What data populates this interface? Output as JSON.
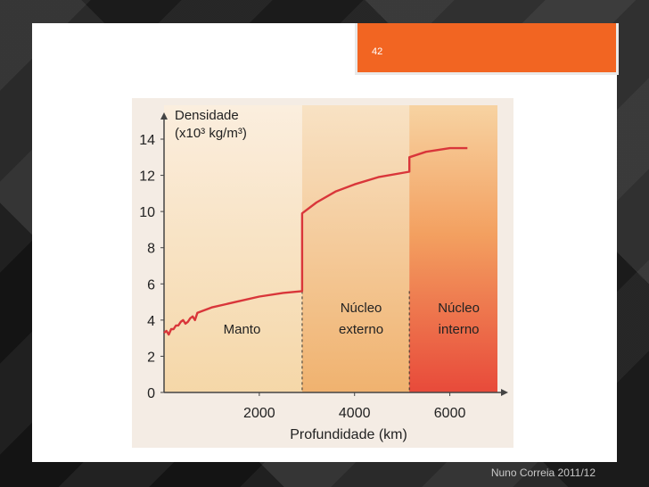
{
  "slide": {
    "number": "42",
    "footer": "Nuno Correia 2011/12"
  },
  "colors": {
    "tab": "#f26522",
    "curve": "#d9363a",
    "manto": "#f6dcb2",
    "externo": "#f2b77a",
    "interno_top": "#f6c07a",
    "interno_bottom": "#ea4f3c"
  },
  "chart_data": {
    "type": "line",
    "ylabel_line1": "Densidade",
    "ylabel_line2": "(x10³  kg/m³)",
    "xlabel": "Profundidade (km)",
    "xlim": [
      0,
      7000
    ],
    "ylim": [
      0,
      14
    ],
    "xticks": [
      2000,
      4000,
      6000
    ],
    "yticks": [
      0,
      2,
      4,
      6,
      8,
      10,
      12,
      14
    ],
    "regions": [
      {
        "label_line1": "",
        "label_line2": "Manto",
        "x0": 0,
        "x1": 2900
      },
      {
        "label_line1": "Núcleo",
        "label_line2": "externo",
        "x0": 2900,
        "x1": 5150
      },
      {
        "label_line1": "Núcleo",
        "label_line2": "interno",
        "x0": 5150,
        "x1": 7000
      }
    ],
    "boundaries": [
      2900,
      5150
    ],
    "series": [
      {
        "x": [
          0,
          50,
          100,
          150,
          200,
          250,
          300,
          350,
          400,
          450,
          500,
          550,
          600,
          650,
          700,
          800,
          1000,
          1500,
          2000,
          2500,
          2900,
          2900,
          3200,
          3600,
          4000,
          4500,
          5150,
          5150,
          5500,
          6000,
          6370
        ],
        "y": [
          3.3,
          3.4,
          3.2,
          3.5,
          3.5,
          3.7,
          3.7,
          3.9,
          4.0,
          3.8,
          3.9,
          4.1,
          4.2,
          4.0,
          4.4,
          4.5,
          4.7,
          5.0,
          5.3,
          5.5,
          5.6,
          9.9,
          10.5,
          11.1,
          11.5,
          11.9,
          12.2,
          13.0,
          13.3,
          13.5,
          13.5
        ]
      }
    ]
  }
}
